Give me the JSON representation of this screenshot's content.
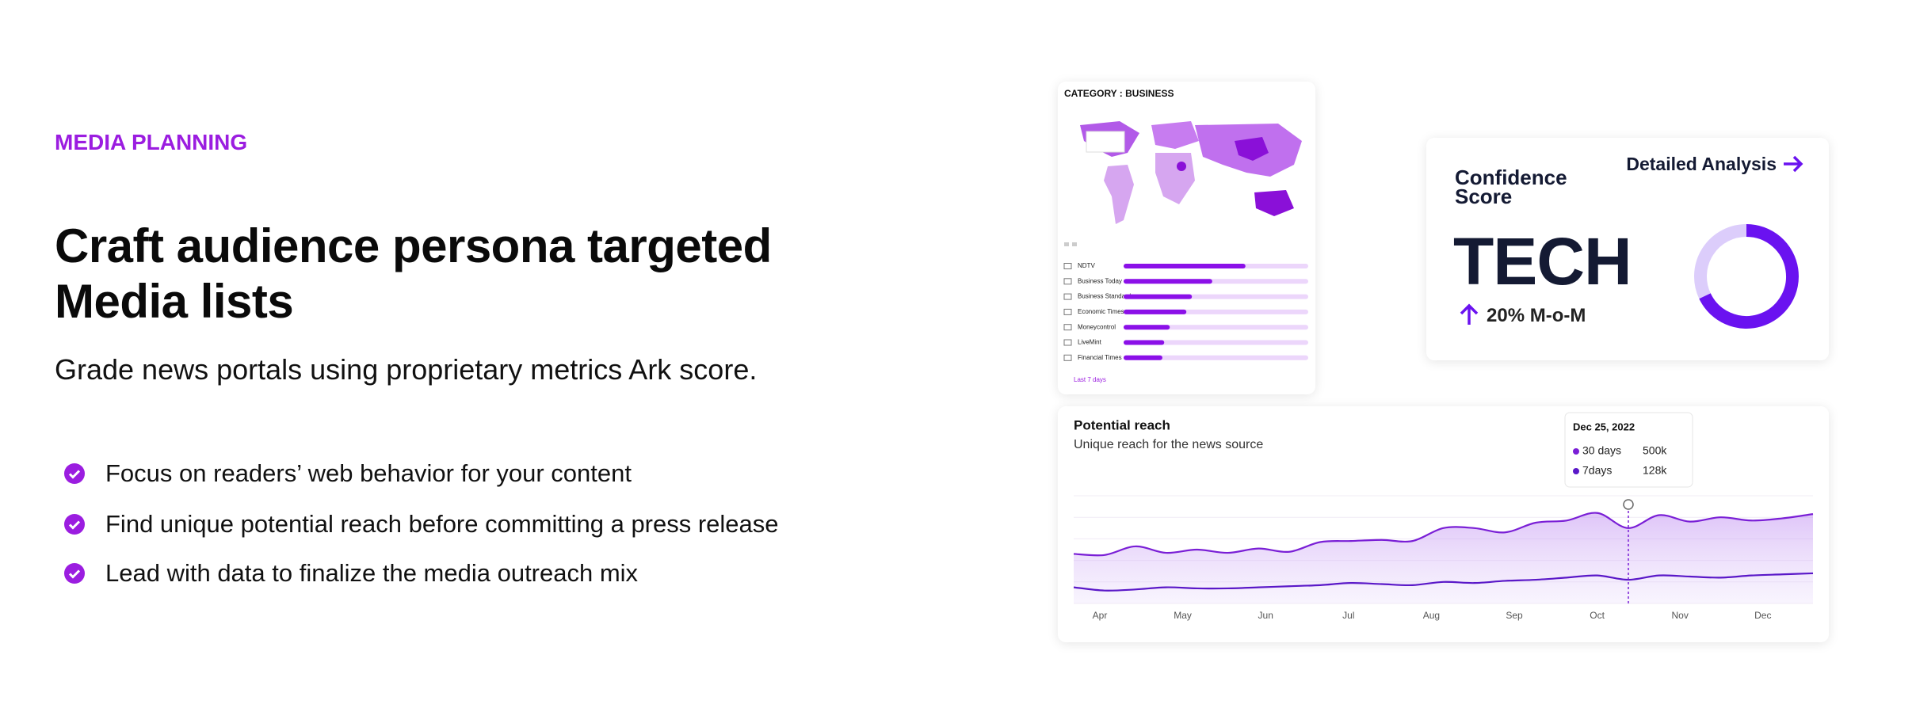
{
  "eyebrow": "MEDIA PLANNING",
  "headline": [
    "Craft audience persona targeted",
    "Media lists"
  ],
  "subheadline": "Grade news portals using proprietary metrics Ark score.",
  "features": [
    "Focus on readers’ web behavior for your content",
    "Find unique potential reach before committing a press release",
    "Lead with data to finalize the media outreach mix"
  ],
  "confidence_card": {
    "title": "Confidence Score",
    "link": "Detailed Analysis",
    "score": "TECH",
    "change": "20% M-o-M"
  },
  "chart_data": [
    {
      "type": "bar",
      "title": "CATEGORY : BUSINESS",
      "categories": [
        "NDTV",
        "Business Today",
        "Business Standard",
        "Economic Times",
        "Moneycontrol",
        "LiveMint",
        "Financial Times"
      ],
      "values": [
        66,
        48,
        37,
        34,
        25,
        22,
        21
      ],
      "xlim": [
        0,
        100
      ],
      "color": "#8b10e8",
      "track_color": "#ecd6fb",
      "footer": "Last 7 days"
    },
    {
      "type": "donut",
      "values": [
        68,
        32
      ],
      "colors": [
        "#6a12f0",
        "#dccdfb"
      ]
    },
    {
      "type": "line",
      "title": "Potential reach",
      "subtitle": "Unique reach for the news source",
      "x_labels": [
        "Apr",
        "May",
        "Jun",
        "Jul",
        "Aug",
        "Sep",
        "Oct",
        "Nov",
        "Dec"
      ],
      "ylim": [
        0,
        100
      ],
      "series": [
        {
          "name": "30 days",
          "color": "#7a1fd6",
          "values": [
            46,
            45,
            53,
            47,
            50,
            47,
            51,
            48,
            57,
            58,
            59,
            58,
            70,
            70,
            66,
            75,
            77,
            84,
            70,
            82,
            76,
            80,
            77,
            79,
            83
          ]
        },
        {
          "name": "7days",
          "color": "#5a18c8",
          "values": [
            15,
            12,
            13,
            15,
            14,
            14,
            15,
            16,
            17,
            19,
            18,
            17,
            20,
            19,
            21,
            22,
            24,
            26,
            22,
            26,
            25,
            24,
            26,
            27,
            28
          ]
        }
      ],
      "tooltip": {
        "date": "Dec 25, 2022",
        "values": [
          "500k",
          "128k"
        ]
      }
    }
  ]
}
